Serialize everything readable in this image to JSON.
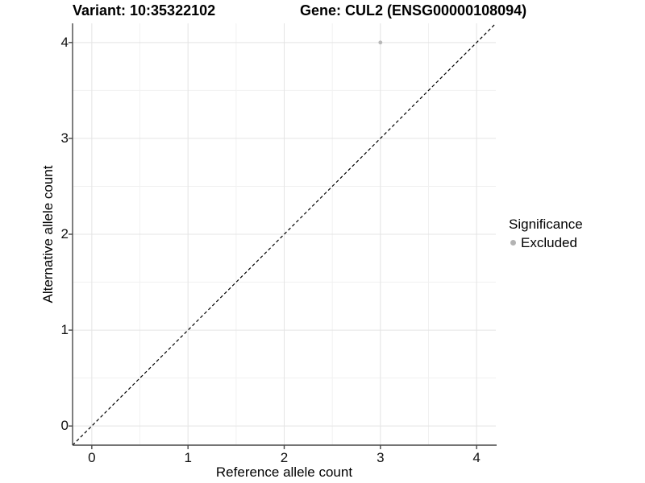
{
  "chart_data": {
    "type": "scatter",
    "titles": {
      "left": "Variant: 10:35322102",
      "right": "Gene: CUL2 (ENSG00000108094)"
    },
    "xlabel": "Reference allele count",
    "ylabel": "Alternative allele count",
    "xlim": [
      -0.2,
      4.2
    ],
    "ylim": [
      -0.2,
      4.2
    ],
    "xticks": [
      0,
      1,
      2,
      3,
      4
    ],
    "yticks": [
      0,
      1,
      2,
      3,
      4
    ],
    "xminor": [
      0.5,
      1.5,
      2.5,
      3.5
    ],
    "yminor": [
      0.5,
      1.5,
      2.5,
      3.5
    ],
    "grid": "major and minor gridlines on white background",
    "points": [
      {
        "x": 3,
        "y": 4,
        "significance": "Excluded"
      }
    ],
    "reference_line": {
      "type": "identity y=x",
      "style": "dashed"
    },
    "legend": {
      "title": "Significance",
      "position": "right",
      "items": [
        {
          "label": "Excluded",
          "color": "#b3b3b3",
          "marker": "circle"
        }
      ]
    }
  },
  "colors": {
    "background": "#ffffff",
    "grid_major": "#e4e4e4",
    "grid_minor": "#f1f1f1",
    "axis_line": "#474747",
    "tick_label": "#111111",
    "dashed_line": "#000000",
    "point": "#b8b8b8"
  }
}
